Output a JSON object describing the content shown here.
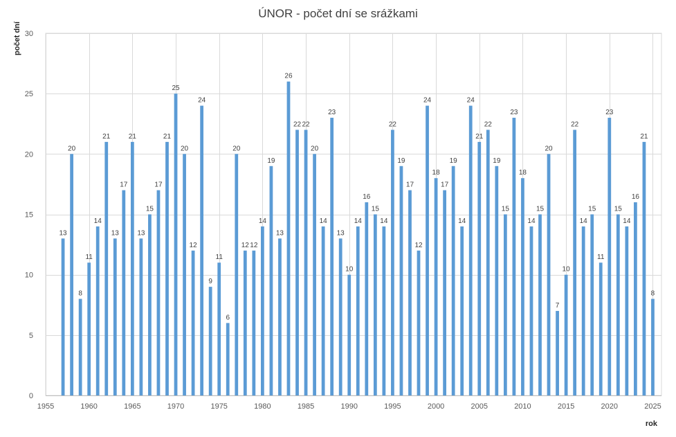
{
  "chart_data": {
    "type": "bar",
    "title": "ÚNOR - počet dní se srážkami",
    "xlabel": "rok",
    "ylabel": "počet dní",
    "xlim": [
      1955,
      2026
    ],
    "ylim": [
      0,
      30
    ],
    "xticks": [
      1955,
      1960,
      1965,
      1970,
      1975,
      1980,
      1985,
      1990,
      1995,
      2000,
      2005,
      2010,
      2015,
      2020,
      2025
    ],
    "yticks": [
      0,
      5,
      10,
      15,
      20,
      25,
      30
    ],
    "grid": true,
    "bar_color": "#5b9bd5",
    "x": [
      1957,
      1958,
      1959,
      1960,
      1961,
      1962,
      1963,
      1964,
      1965,
      1966,
      1967,
      1968,
      1969,
      1970,
      1971,
      1972,
      1973,
      1974,
      1975,
      1976,
      1977,
      1978,
      1979,
      1980,
      1981,
      1982,
      1983,
      1984,
      1985,
      1986,
      1987,
      1988,
      1989,
      1990,
      1991,
      1992,
      1993,
      1994,
      1995,
      1996,
      1997,
      1998,
      1999,
      2000,
      2001,
      2002,
      2003,
      2004,
      2005,
      2006,
      2007,
      2008,
      2009,
      2010,
      2011,
      2012,
      2013,
      2014,
      2015,
      2016,
      2017,
      2018,
      2019,
      2020,
      2021,
      2022,
      2023,
      2024,
      2025
    ],
    "values": [
      13,
      20,
      8,
      11,
      14,
      21,
      13,
      17,
      21,
      13,
      15,
      17,
      21,
      25,
      20,
      12,
      24,
      9,
      11,
      6,
      20,
      12,
      12,
      14,
      19,
      13,
      26,
      22,
      22,
      20,
      14,
      23,
      13,
      10,
      14,
      16,
      15,
      14,
      22,
      19,
      17,
      12,
      24,
      18,
      17,
      19,
      14,
      24,
      21,
      22,
      19,
      15,
      23,
      18,
      14,
      15,
      20,
      7,
      10,
      22,
      14,
      15,
      11,
      23,
      15,
      14,
      16,
      21,
      8
    ]
  }
}
